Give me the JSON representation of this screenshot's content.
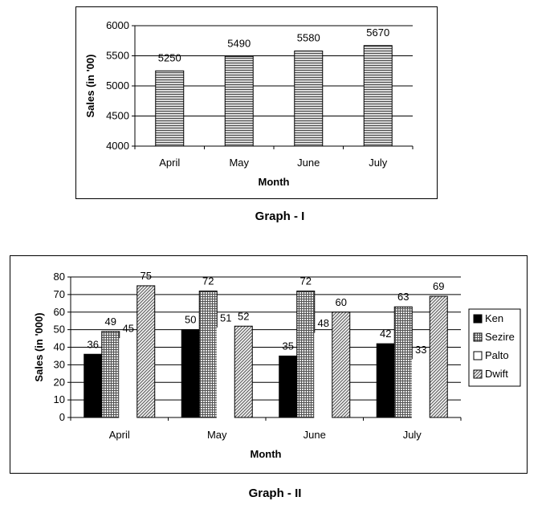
{
  "chart_data": [
    {
      "type": "bar",
      "title": "Graph - I",
      "xlabel": "Month",
      "ylabel": "Sales (in '00)",
      "categories": [
        "April",
        "May",
        "June",
        "July"
      ],
      "values": [
        5250,
        5490,
        5580,
        5670
      ],
      "ylim": [
        4000,
        6000
      ],
      "yticks": [
        4000,
        4500,
        5000,
        5500,
        6000
      ],
      "grid": true
    },
    {
      "type": "bar",
      "title": "Graph - II",
      "xlabel": "Month",
      "ylabel": "Sales (in '000)",
      "categories": [
        "April",
        "May",
        "June",
        "July"
      ],
      "series": [
        {
          "name": "Ken",
          "values": [
            36,
            50,
            35,
            42
          ]
        },
        {
          "name": "Sezire",
          "values": [
            49,
            72,
            72,
            63
          ]
        },
        {
          "name": "Palto",
          "values": [
            45,
            51,
            48,
            33
          ]
        },
        {
          "name": "Dwift",
          "values": [
            75,
            52,
            60,
            69
          ]
        }
      ],
      "ylim": [
        0,
        80
      ],
      "yticks": [
        0,
        10,
        20,
        30,
        40,
        50,
        60,
        70,
        80
      ],
      "grid": true,
      "legend": "right"
    }
  ]
}
